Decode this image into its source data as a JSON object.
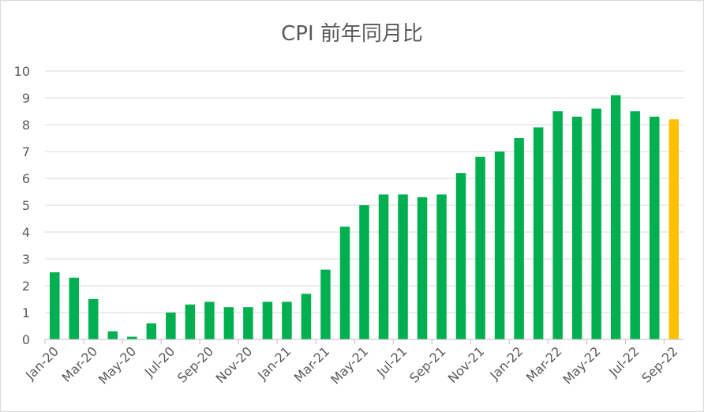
{
  "chart_data": {
    "type": "bar",
    "title": "CPI 前年同月比",
    "xlabel": "",
    "ylabel": "",
    "ylim": [
      0,
      10
    ],
    "yticks": [
      0,
      1,
      2,
      3,
      4,
      5,
      6,
      7,
      8,
      9,
      10
    ],
    "grid": true,
    "legend": "none",
    "categories": [
      "Jan-20",
      "Feb-20",
      "Mar-20",
      "Apr-20",
      "May-20",
      "Jun-20",
      "Jul-20",
      "Aug-20",
      "Sep-20",
      "Oct-20",
      "Nov-20",
      "Dec-20",
      "Jan-21",
      "Feb-21",
      "Mar-21",
      "Apr-21",
      "May-21",
      "Jun-21",
      "Jul-21",
      "Aug-21",
      "Sep-21",
      "Oct-21",
      "Nov-21",
      "Dec-21",
      "Jan-22",
      "Feb-22",
      "Mar-22",
      "Apr-22",
      "May-22",
      "Jun-22",
      "Jul-22",
      "Aug-22",
      "Sep-22"
    ],
    "xtick_labels": [
      "Jan-20",
      "Mar-20",
      "May-20",
      "Jul-20",
      "Sep-20",
      "Nov-20",
      "Jan-21",
      "Mar-21",
      "May-21",
      "Jul-21",
      "Sep-21",
      "Nov-21",
      "Jan-22",
      "Mar-22",
      "May-22",
      "Jul-22",
      "Sep-22"
    ],
    "values": [
      2.5,
      2.3,
      1.5,
      0.3,
      0.1,
      0.6,
      1.0,
      1.3,
      1.4,
      1.2,
      1.2,
      1.4,
      1.4,
      1.7,
      2.6,
      4.2,
      5.0,
      5.4,
      5.4,
      5.3,
      5.4,
      6.2,
      6.8,
      7.0,
      7.5,
      7.9,
      8.5,
      8.3,
      8.6,
      9.1,
      8.5,
      8.3,
      8.2
    ],
    "colors": {
      "bar": "#00b050",
      "highlight": "#ffc000",
      "grid": "#d9d9d9",
      "axis": "#bfbfbf",
      "text": "#595959"
    },
    "highlight_index": 32
  }
}
